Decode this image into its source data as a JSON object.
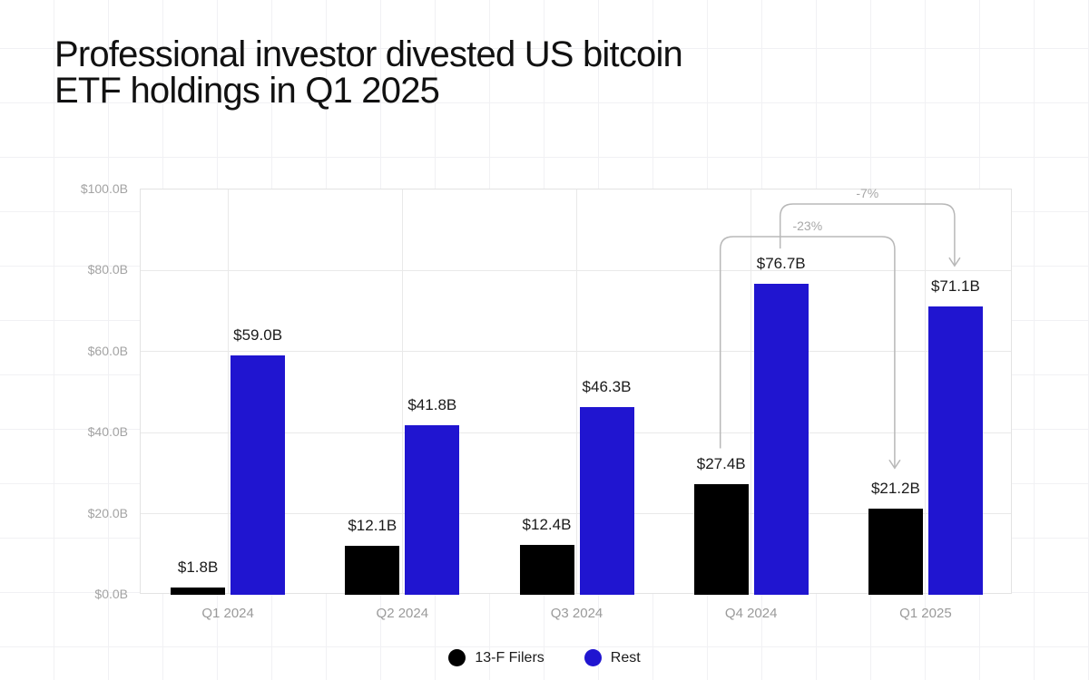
{
  "page": {
    "title": "Professional investor divested US bitcoin ETF holdings in Q1 2025"
  },
  "chart_data": {
    "type": "bar",
    "title": "Professional investor divested US bitcoin ETF holdings in Q1 2025",
    "categories": [
      "Q1 2024",
      "Q2 2024",
      "Q3 2024",
      "Q4 2024",
      "Q1 2025"
    ],
    "series": [
      {
        "name": "13-F Filers",
        "color": "#000000",
        "values": [
          1.8,
          12.1,
          12.4,
          27.4,
          21.2
        ],
        "data_labels": [
          "$1.8B",
          "$12.1B",
          "$12.4B",
          "$27.4B",
          "$21.2B"
        ]
      },
      {
        "name": "Rest",
        "color": "#2015d0",
        "values": [
          59.0,
          41.8,
          46.3,
          76.7,
          71.1
        ],
        "data_labels": [
          "$59.0B",
          "$41.8B",
          "$46.3B",
          "$76.7B",
          "$71.1B"
        ]
      }
    ],
    "xlabel": "",
    "ylabel": "",
    "ylim": [
      0,
      100
    ],
    "y_ticks": [
      {
        "value": 0,
        "label": "$0.0B"
      },
      {
        "value": 20,
        "label": "$20.0B"
      },
      {
        "value": 40,
        "label": "$40.0B"
      },
      {
        "value": 60,
        "label": "$60.0B"
      },
      {
        "value": 80,
        "label": "$80.0B"
      },
      {
        "value": 100,
        "label": "$100.0B"
      }
    ],
    "grid": true,
    "legend_position": "bottom",
    "annotations": [
      {
        "label": "-23%",
        "series_index": 0,
        "from_category": "Q4 2024",
        "to_category": "Q1 2025",
        "line_y": 261
      },
      {
        "label": "-7%",
        "series_index": 1,
        "from_category": "Q4 2024",
        "to_category": "Q1 2025",
        "line_y": 225
      }
    ],
    "annotation_style": {
      "line_color": "#b8b8b8",
      "text_color": "#a8a8a8"
    }
  },
  "legend": {
    "items": [
      {
        "label": "13-F Filers",
        "color": "#000000"
      },
      {
        "label": "Rest",
        "color": "#2015d0"
      }
    ]
  }
}
